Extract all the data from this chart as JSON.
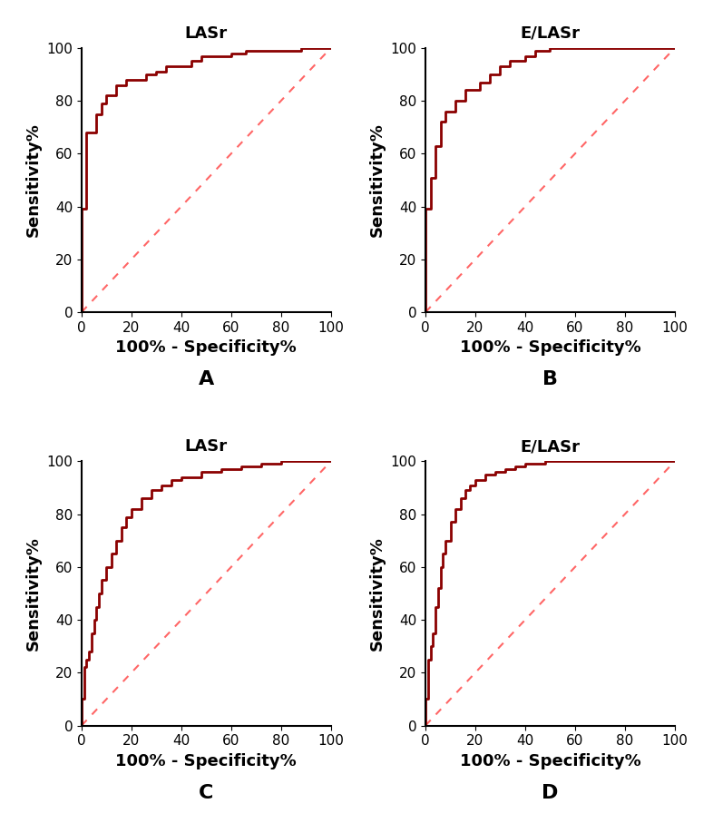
{
  "titles": [
    "LASr",
    "E/LASr",
    "LASr",
    "E/LASr"
  ],
  "labels": [
    "A",
    "B",
    "C",
    "D"
  ],
  "roc_color": "#8B0000",
  "diag_color": "#FF6666",
  "xlabel": "100% - Specificity%",
  "ylabel": "Sensitivity%",
  "yticks": [
    0,
    20,
    40,
    60,
    80,
    100
  ],
  "xticks": [
    0,
    20,
    40,
    60,
    80,
    100
  ],
  "roc_curves": [
    {
      "fpr": [
        0,
        0,
        2,
        2,
        4,
        4,
        6,
        6,
        8,
        8,
        10,
        10,
        14,
        14,
        18,
        18,
        26,
        26,
        30,
        30,
        34,
        34,
        44,
        44,
        48,
        48,
        60,
        60,
        66,
        66,
        88,
        88,
        100
      ],
      "tpr": [
        0,
        39,
        39,
        68,
        68,
        68,
        68,
        75,
        75,
        79,
        79,
        82,
        82,
        86,
        86,
        88,
        88,
        90,
        90,
        91,
        91,
        93,
        93,
        95,
        95,
        97,
        97,
        98,
        98,
        99,
        99,
        100,
        100
      ]
    },
    {
      "fpr": [
        0,
        0,
        2,
        2,
        4,
        4,
        6,
        6,
        8,
        8,
        12,
        12,
        16,
        16,
        22,
        22,
        26,
        26,
        30,
        30,
        34,
        34,
        40,
        40,
        44,
        44,
        50,
        50,
        56,
        56,
        100
      ],
      "tpr": [
        0,
        39,
        39,
        51,
        51,
        63,
        63,
        72,
        72,
        76,
        76,
        80,
        80,
        84,
        84,
        87,
        87,
        90,
        90,
        93,
        93,
        95,
        95,
        97,
        97,
        99,
        99,
        100,
        100,
        100,
        100
      ]
    },
    {
      "fpr": [
        0,
        0,
        1,
        1,
        2,
        2,
        3,
        3,
        4,
        4,
        5,
        5,
        6,
        6,
        7,
        7,
        8,
        8,
        10,
        10,
        12,
        12,
        14,
        14,
        16,
        16,
        18,
        18,
        20,
        20,
        24,
        24,
        28,
        28,
        32,
        32,
        36,
        36,
        40,
        40,
        48,
        48,
        56,
        56,
        64,
        64,
        72,
        72,
        80,
        80,
        88,
        88,
        100
      ],
      "tpr": [
        0,
        10,
        10,
        22,
        22,
        25,
        25,
        28,
        28,
        35,
        35,
        40,
        40,
        45,
        45,
        50,
        50,
        55,
        55,
        60,
        60,
        65,
        65,
        70,
        70,
        75,
        75,
        79,
        79,
        82,
        82,
        86,
        86,
        89,
        89,
        91,
        91,
        93,
        93,
        94,
        94,
        96,
        96,
        97,
        97,
        98,
        98,
        99,
        99,
        100,
        100,
        100,
        100
      ]
    },
    {
      "fpr": [
        0,
        0,
        1,
        1,
        2,
        2,
        3,
        3,
        4,
        4,
        5,
        5,
        6,
        6,
        7,
        7,
        8,
        8,
        10,
        10,
        12,
        12,
        14,
        14,
        16,
        16,
        18,
        18,
        20,
        20,
        24,
        24,
        28,
        28,
        32,
        32,
        36,
        36,
        40,
        40,
        48,
        48,
        60,
        60,
        72,
        72,
        100
      ],
      "tpr": [
        0,
        10,
        10,
        25,
        25,
        30,
        30,
        35,
        35,
        45,
        45,
        52,
        52,
        60,
        60,
        65,
        65,
        70,
        70,
        77,
        77,
        82,
        82,
        86,
        86,
        89,
        89,
        91,
        91,
        93,
        93,
        95,
        95,
        96,
        96,
        97,
        97,
        98,
        98,
        99,
        99,
        100,
        100,
        100,
        100,
        100,
        100
      ]
    }
  ],
  "title_fontsize": 13,
  "label_fontsize": 13,
  "tick_fontsize": 11,
  "panel_label_fontsize": 16,
  "line_width": 2.0,
  "diag_linewidth": 1.5
}
